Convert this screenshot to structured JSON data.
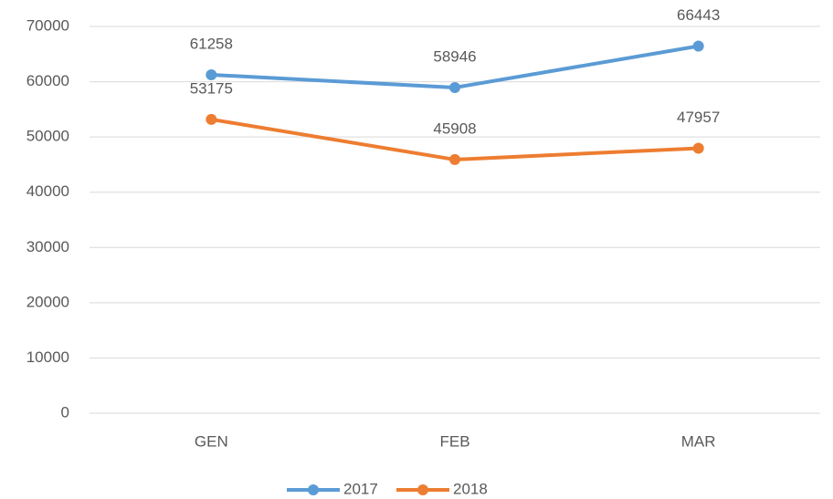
{
  "chart_data": {
    "type": "line",
    "categories": [
      "GEN",
      "FEB",
      "MAR"
    ],
    "series": [
      {
        "name": "2017",
        "color": "#5b9bd5",
        "values": [
          61258,
          58946,
          66443
        ]
      },
      {
        "name": "2018",
        "color": "#ed7d31",
        "values": [
          53175,
          45908,
          47957
        ]
      }
    ],
    "ylim": [
      0,
      70000
    ],
    "yticks": [
      0,
      10000,
      20000,
      30000,
      40000,
      50000,
      60000,
      70000
    ],
    "grid": true,
    "legend": "bottom",
    "data_labels": true
  }
}
